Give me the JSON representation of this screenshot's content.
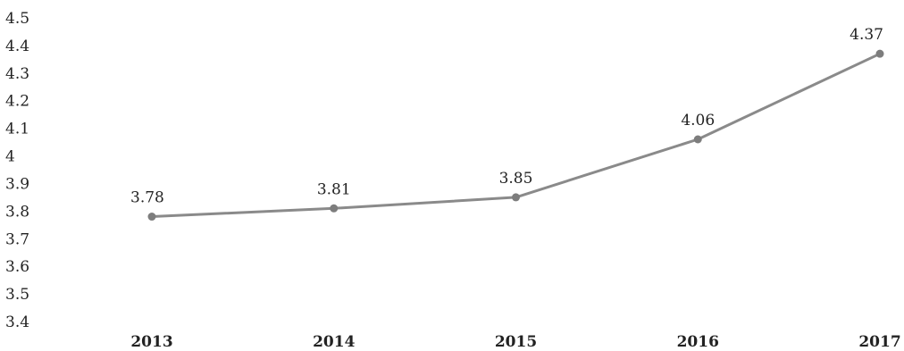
{
  "chart_data": {
    "type": "line",
    "categories": [
      "2013",
      "2014",
      "2015",
      "2016",
      "2017"
    ],
    "values": [
      3.78,
      3.81,
      3.85,
      4.06,
      4.37
    ],
    "data_labels": [
      "3.78",
      "3.81",
      "3.85",
      "4.06",
      "4.37"
    ],
    "y_tick_labels": [
      "4.5",
      "4.4",
      "4.3",
      "4.2",
      "4.1",
      "4",
      "3.9",
      "3.8",
      "3.7",
      "3.6",
      "3.5",
      "3.4"
    ],
    "ylim": [
      3.4,
      4.5
    ],
    "grid": false,
    "legend": "none",
    "line_color": "#8a8a8a",
    "marker_color": "#7d7d7d"
  }
}
